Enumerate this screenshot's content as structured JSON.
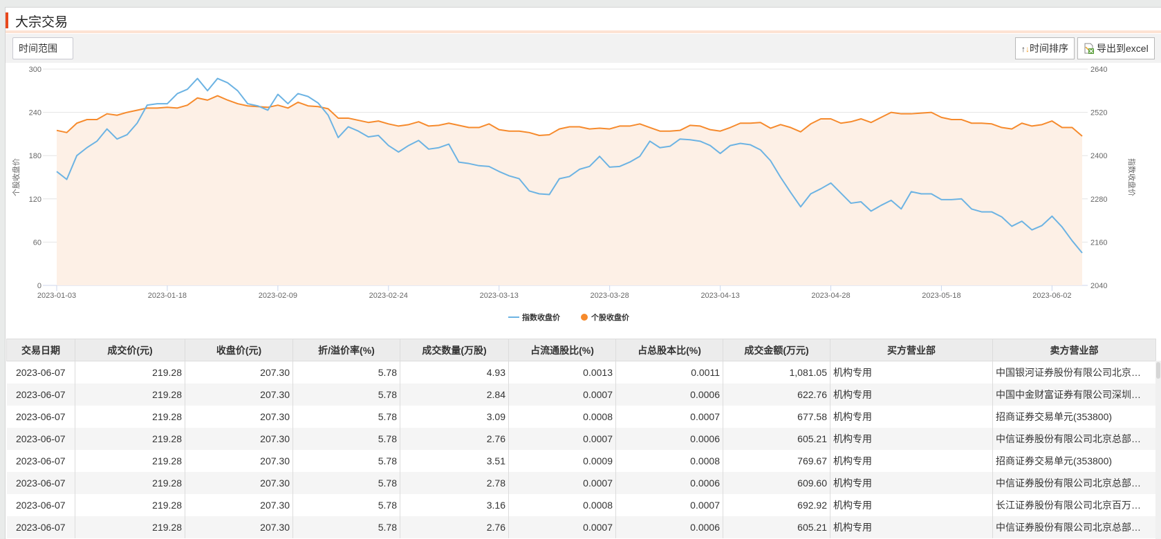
{
  "header": {
    "title": "大宗交易"
  },
  "toolbar": {
    "range_label": "时间范围",
    "sort_label": "时间排序",
    "export_label": "导出到excel"
  },
  "colors": {
    "accent": "#e8491d",
    "index_line": "#6cb3e3",
    "stock_line": "#f68a2c",
    "area_fill": "#fdf0e6"
  },
  "chart_data": {
    "type": "line",
    "left_ylabel": "个股收盘价",
    "right_ylabel": "指数收盘价",
    "left_ylim": [
      0,
      300
    ],
    "left_ticks": [
      0,
      60,
      120,
      180,
      240,
      300
    ],
    "right_ylim": [
      2040,
      2640
    ],
    "right_ticks": [
      2040,
      2160,
      2280,
      2400,
      2520,
      2640
    ],
    "x_tick_labels": [
      "2023-01-03",
      "2023-01-18",
      "2023-02-09",
      "2023-02-24",
      "2023-03-13",
      "2023-03-28",
      "2023-04-13",
      "2023-04-28",
      "2023-05-18",
      "2023-06-02"
    ],
    "x_tick_every": 11,
    "legend_position": "bottom-center",
    "series": [
      {
        "name": "指数收盘价",
        "axis": "left",
        "color": "#6cb3e3",
        "values": [
          158,
          147,
          180,
          191,
          200,
          217,
          203,
          209,
          225,
          250,
          252,
          252,
          266,
          272,
          287,
          270,
          287,
          281,
          270,
          252,
          249,
          243,
          265,
          252,
          266,
          262,
          253,
          236,
          205,
          220,
          214,
          206,
          208,
          194,
          185,
          194,
          201,
          189,
          191,
          196,
          171,
          169,
          166,
          165,
          158,
          152,
          148,
          131,
          127,
          126,
          148,
          151,
          161,
          165,
          179,
          164,
          165,
          171,
          179,
          200,
          191,
          193,
          203,
          202,
          200,
          194,
          183,
          194,
          197,
          195,
          188,
          173,
          150,
          129,
          109,
          127,
          134,
          142,
          128,
          114,
          116,
          103,
          111,
          118,
          106,
          130,
          127,
          127,
          119,
          119,
          120,
          106,
          102,
          102,
          95,
          82,
          89,
          77,
          83,
          96,
          81,
          62,
          45
        ]
      },
      {
        "name": "个股收盘价",
        "axis": "right",
        "color": "#f68a2c",
        "area": true,
        "values": [
          2470,
          2464,
          2490,
          2500,
          2500,
          2516,
          2512,
          2520,
          2526,
          2532,
          2532,
          2534,
          2532,
          2540,
          2560,
          2554,
          2566,
          2554,
          2544,
          2538,
          2536,
          2534,
          2540,
          2532,
          2548,
          2538,
          2536,
          2530,
          2504,
          2504,
          2498,
          2492,
          2496,
          2488,
          2482,
          2486,
          2494,
          2482,
          2484,
          2490,
          2484,
          2478,
          2478,
          2488,
          2472,
          2468,
          2468,
          2464,
          2456,
          2458,
          2474,
          2480,
          2480,
          2474,
          2476,
          2474,
          2482,
          2482,
          2488,
          2478,
          2468,
          2468,
          2470,
          2484,
          2482,
          2472,
          2468,
          2478,
          2490,
          2490,
          2492,
          2476,
          2486,
          2478,
          2466,
          2488,
          2502,
          2502,
          2490,
          2494,
          2502,
          2492,
          2506,
          2520,
          2516,
          2516,
          2518,
          2520,
          2506,
          2500,
          2500,
          2490,
          2490,
          2488,
          2478,
          2474,
          2490,
          2482,
          2486,
          2496,
          2478,
          2478,
          2454
        ]
      }
    ]
  },
  "table": {
    "columns": [
      "交易日期",
      "成交价(元)",
      "收盘价(元)",
      "折/溢价率(%)",
      "成交数量(万股)",
      "占流通股比(%)",
      "占总股本比(%)",
      "成交金额(万元)",
      "买方营业部",
      "卖方营业部"
    ],
    "rows": [
      [
        "2023-06-07",
        "219.28",
        "207.30",
        "5.78",
        "4.93",
        "0.0013",
        "0.0011",
        "1,081.05",
        "机构专用",
        "中国银河证券股份有限公司北京…"
      ],
      [
        "2023-06-07",
        "219.28",
        "207.30",
        "5.78",
        "2.84",
        "0.0007",
        "0.0006",
        "622.76",
        "机构专用",
        "中国中金财富证券有限公司深圳…"
      ],
      [
        "2023-06-07",
        "219.28",
        "207.30",
        "5.78",
        "3.09",
        "0.0008",
        "0.0007",
        "677.58",
        "机构专用",
        "招商证券交易单元(353800)"
      ],
      [
        "2023-06-07",
        "219.28",
        "207.30",
        "5.78",
        "2.76",
        "0.0007",
        "0.0006",
        "605.21",
        "机构专用",
        "中信证券股份有限公司北京总部…"
      ],
      [
        "2023-06-07",
        "219.28",
        "207.30",
        "5.78",
        "3.51",
        "0.0009",
        "0.0008",
        "769.67",
        "机构专用",
        "招商证券交易单元(353800)"
      ],
      [
        "2023-06-07",
        "219.28",
        "207.30",
        "5.78",
        "2.78",
        "0.0007",
        "0.0006",
        "609.60",
        "机构专用",
        "中信证券股份有限公司北京总部…"
      ],
      [
        "2023-06-07",
        "219.28",
        "207.30",
        "5.78",
        "3.16",
        "0.0008",
        "0.0007",
        "692.92",
        "机构专用",
        "长江证券股份有限公司北京百万…"
      ],
      [
        "2023-06-07",
        "219.28",
        "207.30",
        "5.78",
        "2.76",
        "0.0007",
        "0.0006",
        "605.21",
        "机构专用",
        "中信证券股份有限公司北京总部…"
      ]
    ]
  }
}
